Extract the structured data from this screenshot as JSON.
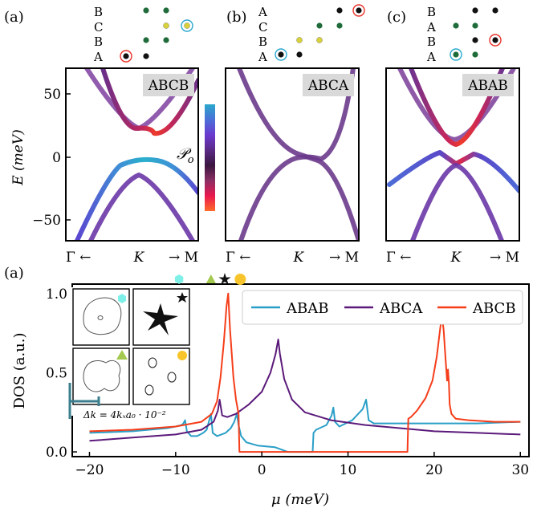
{
  "panels": [
    {
      "letter": "(a)",
      "stack_label": "ABCB",
      "layers": [
        "B",
        "C",
        "B",
        "A"
      ],
      "k_labels": [
        "Γ ←",
        "K",
        "→ M"
      ],
      "band_colors": [
        "#7e3f9f",
        "#5d46c6",
        "#d9244e"
      ]
    },
    {
      "letter": "(b)",
      "stack_label": "ABCA",
      "layers": [
        "A",
        "C",
        "B",
        "A"
      ],
      "k_labels": [
        "Γ ←",
        "K",
        "→ M"
      ],
      "band_colors": [
        "#6b3a8c",
        "#6b3a8c"
      ]
    },
    {
      "letter": "(c)",
      "stack_label": "ABAB",
      "layers": [
        "B",
        "A",
        "B",
        "A"
      ],
      "k_labels": [
        "Γ ←",
        "K",
        "→ M"
      ],
      "band_colors": [
        "#7a3d98",
        "#5a49c8",
        "#d8284c"
      ]
    }
  ],
  "band_axis": {
    "ylabel": "E (meV)",
    "yticks": [
      "50",
      "0",
      "−50"
    ],
    "ylim": [
      -70,
      70
    ]
  },
  "colorbar": {
    "label": "𝒫",
    "sub": "o",
    "colors": [
      "#ff6a2a",
      "#e9194f",
      "#8b2f64",
      "#3a1640",
      "#5b2a86",
      "#6b3ad0",
      "#4b6fd8",
      "#2ba7cc"
    ]
  },
  "chart_data": {
    "type": "line",
    "xlabel": "μ (meV)",
    "ylabel": "DOS (a.u.)",
    "xlim": [
      -22,
      31
    ],
    "ylim": [
      -0.03,
      1.06
    ],
    "xticks": [
      "−20",
      "−10",
      "0",
      "10",
      "20",
      "30"
    ],
    "yticks": [
      "0.0",
      "0.5",
      "1.0"
    ],
    "legend_position": "top-right",
    "series": [
      {
        "name": "ABAB",
        "color": "#2a9fc7",
        "x": [
          -20,
          -15,
          -11,
          -10,
          -9.3,
          -9.1,
          -8.9,
          -8.7,
          -8.2,
          -7.5,
          -6.8,
          -6.4,
          -6.1,
          -5.9,
          -5.7,
          -5.2,
          -4.2,
          -3.6,
          -3.2,
          -2.9,
          -2.7,
          -2.4,
          -1.8,
          -0.5,
          1.5,
          3,
          5.9,
          6.0,
          6.3,
          7.5,
          8.1,
          8.3,
          8.5,
          9,
          10.5,
          11.7,
          12.1,
          12.4,
          13,
          15,
          20,
          25,
          30
        ],
        "y": [
          0.12,
          0.13,
          0.15,
          0.16,
          0.17,
          0.18,
          0.2,
          0.13,
          0.1,
          0.1,
          0.12,
          0.14,
          0.2,
          0.24,
          0.12,
          0.1,
          0.12,
          0.15,
          0.19,
          0.24,
          0.17,
          0.1,
          0.06,
          0.04,
          0.03,
          0.0,
          0.0,
          0.12,
          0.14,
          0.17,
          0.23,
          0.28,
          0.19,
          0.16,
          0.2,
          0.27,
          0.33,
          0.2,
          0.18,
          0.18,
          0.18,
          0.18,
          0.19
        ]
      },
      {
        "name": "ABCA",
        "color": "#5b1a7a",
        "x": [
          -20,
          -15,
          -10,
          -7,
          -5.6,
          -5.1,
          -4.9,
          -4.6,
          -4.0,
          -3.0,
          -1.5,
          0.0,
          1.0,
          1.6,
          1.9,
          2.1,
          2.6,
          3.5,
          5,
          8,
          12,
          16,
          20,
          25,
          30
        ],
        "y": [
          0.07,
          0.09,
          0.11,
          0.14,
          0.19,
          0.26,
          0.33,
          0.23,
          0.22,
          0.24,
          0.3,
          0.38,
          0.5,
          0.62,
          0.71,
          0.62,
          0.46,
          0.33,
          0.25,
          0.2,
          0.17,
          0.15,
          0.13,
          0.12,
          0.11
        ]
      },
      {
        "name": "ABCB",
        "color": "#f53d1a",
        "x": [
          -20,
          -15,
          -10,
          -7,
          -5.8,
          -5.2,
          -4.8,
          -4.4,
          -4.1,
          -3.9,
          -3.7,
          -3.3,
          -3.0,
          -2.7,
          -2.6,
          0,
          10,
          16.9,
          17.0,
          17.3,
          18,
          19,
          19.8,
          20.3,
          20.7,
          20.9,
          21.1,
          21.3,
          21.5,
          21.6,
          21.7,
          21.8,
          22.0,
          22.5,
          24,
          27,
          30
        ],
        "y": [
          0.13,
          0.14,
          0.16,
          0.19,
          0.24,
          0.32,
          0.47,
          0.7,
          0.92,
          1.0,
          0.78,
          0.47,
          0.33,
          0.24,
          0.0,
          0.0,
          0.0,
          0.0,
          0.21,
          0.22,
          0.26,
          0.34,
          0.45,
          0.6,
          0.78,
          0.86,
          0.77,
          0.6,
          0.45,
          0.52,
          0.44,
          0.3,
          0.24,
          0.21,
          0.2,
          0.19,
          0.19
        ]
      }
    ],
    "markers": [
      {
        "x": -9.6,
        "shape": "hexagon",
        "color": "#7ff0e8"
      },
      {
        "x": -5.9,
        "shape": "triangle",
        "color": "#a3c94f"
      },
      {
        "x": -4.3,
        "shape": "star",
        "color": "#111111"
      },
      {
        "x": -2.5,
        "shape": "circle",
        "color": "#f7c52b"
      }
    ],
    "inset": {
      "scale_label": "Δk = 4kₓa₀ · 10⁻²"
    }
  }
}
